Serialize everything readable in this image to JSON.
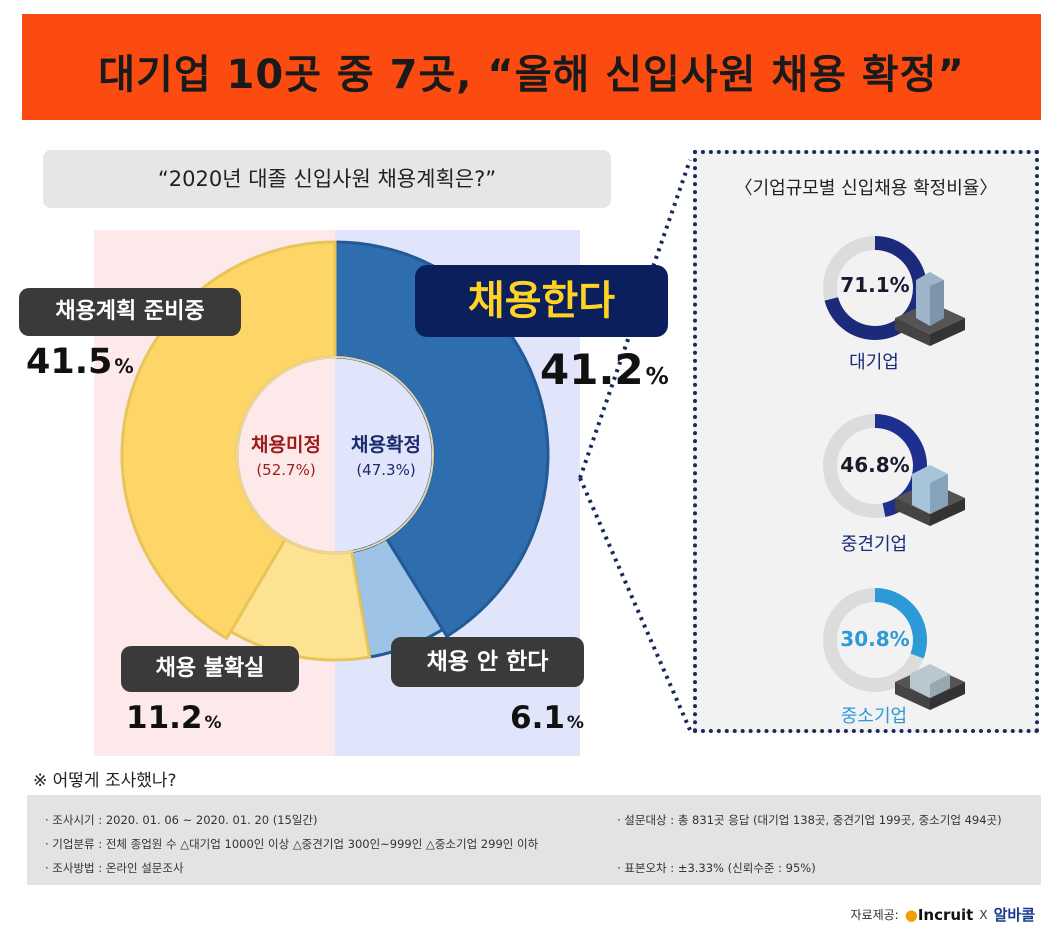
{
  "header": {
    "title": "대기업 10곳 중 7곳, “올해 신입사원 채용 확정”"
  },
  "question": "“2020년 대졸 신입사원 채용계획은?”",
  "main_chart": {
    "type": "pie",
    "segments": [
      {
        "label": "채용한다",
        "value": 41.2,
        "value_label": "41.2",
        "color": "#2e6eae"
      },
      {
        "label": "채용 안 한다",
        "value": 6.1,
        "value_label": "6.1",
        "color": "#9dc3e6"
      },
      {
        "label": "채용 불확실",
        "value": 11.2,
        "value_label": "11.2",
        "color": "#fde391"
      },
      {
        "label": "채용계획 준비중",
        "value": 41.5,
        "value_label": "41.5",
        "color": "#fed668"
      }
    ],
    "unit": "%",
    "center_left": {
      "title": "채용미정",
      "sub": "(52.7%)",
      "color": "#9c1b1b"
    },
    "center_right": {
      "title": "채용확정",
      "sub": "(47.3%)",
      "color": "#1a2a6c"
    }
  },
  "side_panel": {
    "title": "〈기업규모별 신입채용 확정비율〉",
    "items": [
      {
        "label": "대기업",
        "value": 71.1,
        "value_label": "71.1%",
        "color": "#1b2a7a",
        "text_color": "#1a1a2e"
      },
      {
        "label": "중견기업",
        "value": 46.8,
        "value_label": "46.8%",
        "color": "#1f2f8f",
        "text_color": "#1a1a2e"
      },
      {
        "label": "중소기업",
        "value": 30.8,
        "value_label": "30.8%",
        "color": "#2d9ad8",
        "text_color": "#2d9ad8"
      }
    ],
    "track_color": "#dcdcdc"
  },
  "notes": {
    "title": "※ 어떻게 조사했나?",
    "period": "· 조사시기 : 2020. 01. 06 ~ 2020. 01. 20 (15일간)",
    "classification": "· 기업분류 : 전체 종업원 수 △대기업 1000인 이상 △중견기업 300인~999인 △중소기업 299인 이하",
    "method": "· 조사방법 : 온라인 설문조사",
    "target": "· 설문대상 : 총 831곳 응답 (대기업 138곳, 중견기업 199곳, 중소기업 494곳)",
    "error": "· 표본오차 : ±3.33% (신뢰수준 : 95%)"
  },
  "footer": {
    "source_label": "자료제공:",
    "brand_a": "Incruit",
    "separator": "X",
    "brand_b": "알바콜"
  }
}
